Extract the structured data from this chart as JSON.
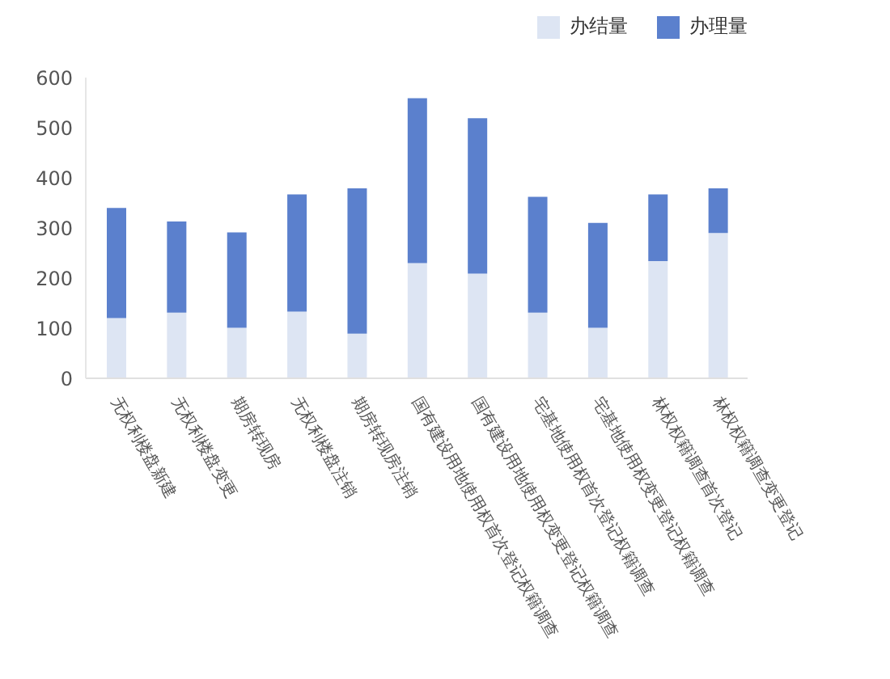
{
  "chart_data": {
    "type": "bar",
    "stacked": true,
    "categories": [
      "无权利楼盘新建",
      "无权利楼盘变更",
      "期房转现房",
      "无权利楼盘注销",
      "期房转现房注销",
      "国有建设用地使用权首次登记权籍调查",
      "国有建设用地使用权变更登记权籍调查",
      "宅基地使用权首次登记权籍调查",
      "宅基地使用权变更登记权籍调查",
      "林权权籍调查首次登记",
      "林权权籍调查变更登记"
    ],
    "series": [
      {
        "name": "办结量",
        "color": "#dde5f3",
        "values": [
          120,
          131,
          101,
          133,
          89,
          230,
          209,
          131,
          101,
          234,
          290
        ]
      },
      {
        "name": "办理量",
        "color": "#5b80cd",
        "values": [
          220,
          182,
          190,
          234,
          290,
          329,
          310,
          231,
          209,
          133,
          89
        ]
      }
    ],
    "ylim": [
      0,
      600
    ],
    "yticks": [
      0,
      100,
      200,
      300,
      400,
      500,
      600
    ],
    "grid": false,
    "legend": "top right"
  }
}
